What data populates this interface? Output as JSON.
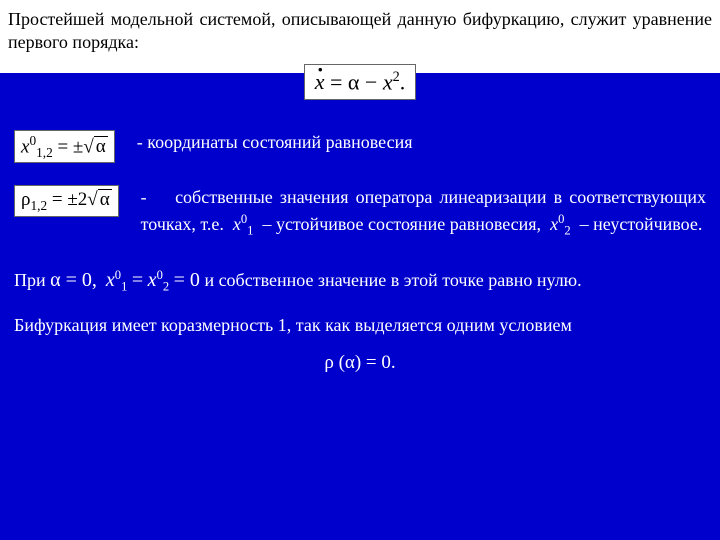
{
  "colors": {
    "slide_bg": "#0000cc",
    "header_bg": "#ffffff",
    "header_text": "#000000",
    "body_text": "#ffffff",
    "formula_bg": "#ffffff",
    "formula_text": "#000000",
    "formula_border": "#666666"
  },
  "typography": {
    "family": "Times New Roman",
    "header_fontsize_pt": 14,
    "body_fontsize_pt": 14,
    "formula_fontsize_pt": 16
  },
  "header": {
    "text": "Простейшей модельной системой, описывающей данную бифуркацию, служит уравнение первого порядка:"
  },
  "main_equation": {
    "latex": "ẋ = α − x²."
  },
  "row1": {
    "formula": "x⁰₁,₂ = ±√α",
    "text": "- координаты состояний равновесия"
  },
  "row2": {
    "formula": "ρ₁,₂ = ±2√α",
    "t1": "-",
    "t2": "собственные значения оператора линеаризации в соответствующих точках, т.е.",
    "var1": "x",
    "sup1": "0",
    "sub1": "1",
    "t3": "– устойчивое состояние равновесия,",
    "var2": "x",
    "sup2": "0",
    "sub2": "2",
    "t4": "– неустойчивое."
  },
  "para1": {
    "p1": "При",
    "alpha_eq": "α = 0,",
    "var1": "x",
    "sup1": "0",
    "sub1": "1",
    "eq": "=",
    "var2": "x",
    "sup2": "0",
    "sub2": "2",
    "eq0": "= 0",
    "tail": "и собственное значение в этой точке равно нулю."
  },
  "para2": {
    "text": "Бифуркация имеет коразмерность 1, так как выделяется одним условием"
  },
  "formula_center": {
    "text": "ρ (α) = 0."
  }
}
